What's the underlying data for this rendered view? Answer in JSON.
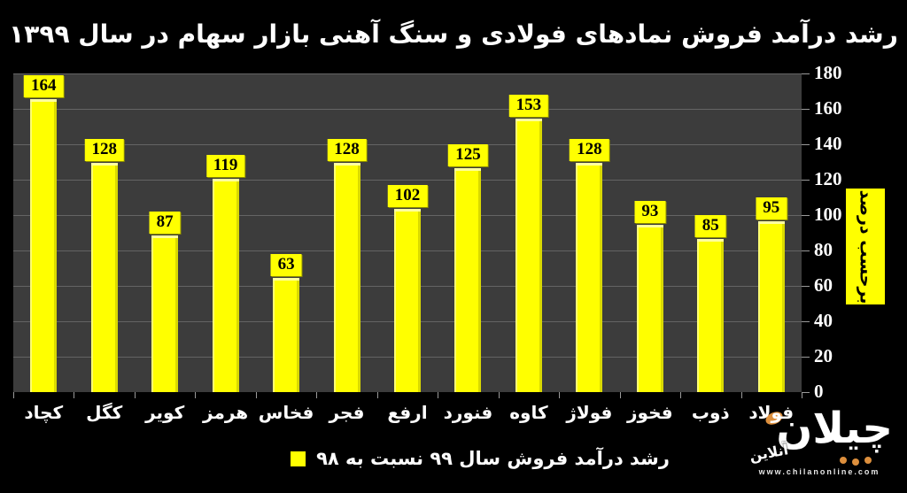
{
  "title": "رشد درآمد فروش نمادهای فولادی و سنگ آهنی بازار سهام در سال ۱۳۹۹",
  "chart_data": {
    "type": "bar",
    "title": "رشد درآمد فروش نمادهای فولادی و سنگ آهنی بازار سهام در سال ۱۳۹۹",
    "categories": [
      "کچاد",
      "کگل",
      "کویر",
      "هرمز",
      "فخاس",
      "فجر",
      "ارفع",
      "فنورد",
      "کاوه",
      "فولاژ",
      "فخوز",
      "ذوب",
      "فولاد"
    ],
    "values": [
      164,
      128,
      87,
      119,
      63,
      128,
      102,
      125,
      153,
      128,
      93,
      85,
      95
    ],
    "xlabel": "",
    "ylabel": "برحسب درصد",
    "ylim": [
      0,
      180
    ],
    "yticks": [
      0,
      20,
      40,
      60,
      80,
      100,
      120,
      140,
      160,
      180
    ],
    "grid": true,
    "legend_position": "bottom",
    "legend": [
      {
        "label": "رشد درآمد فروش سال ۹۹ نسبت به ۹۸",
        "color": "#ffff00"
      }
    ],
    "bar_color": "#ffff00",
    "plot_background": "#3c3c3c",
    "page_background": "#000000",
    "data_label_box_color": "#ffff00",
    "data_label_text_color": "#000000"
  },
  "ylabel_box": {
    "text": "برحسب درصد",
    "background": "#ffff00"
  },
  "legend": {
    "label": "رشد درآمد فروش سال ۹۹ نسبت به ۹۸",
    "swatch_color": "#ffff00"
  },
  "logo": {
    "wordmark": "چیلان",
    "sub_wordmark": "آنلاین",
    "url": "www.chilanonline.com",
    "accent_color": "#dd8f3d"
  },
  "colors": {
    "title_text": "#ffffff",
    "axis_text": "#ffffff",
    "gridline": "#646464",
    "tick": "#9a9a9a"
  }
}
